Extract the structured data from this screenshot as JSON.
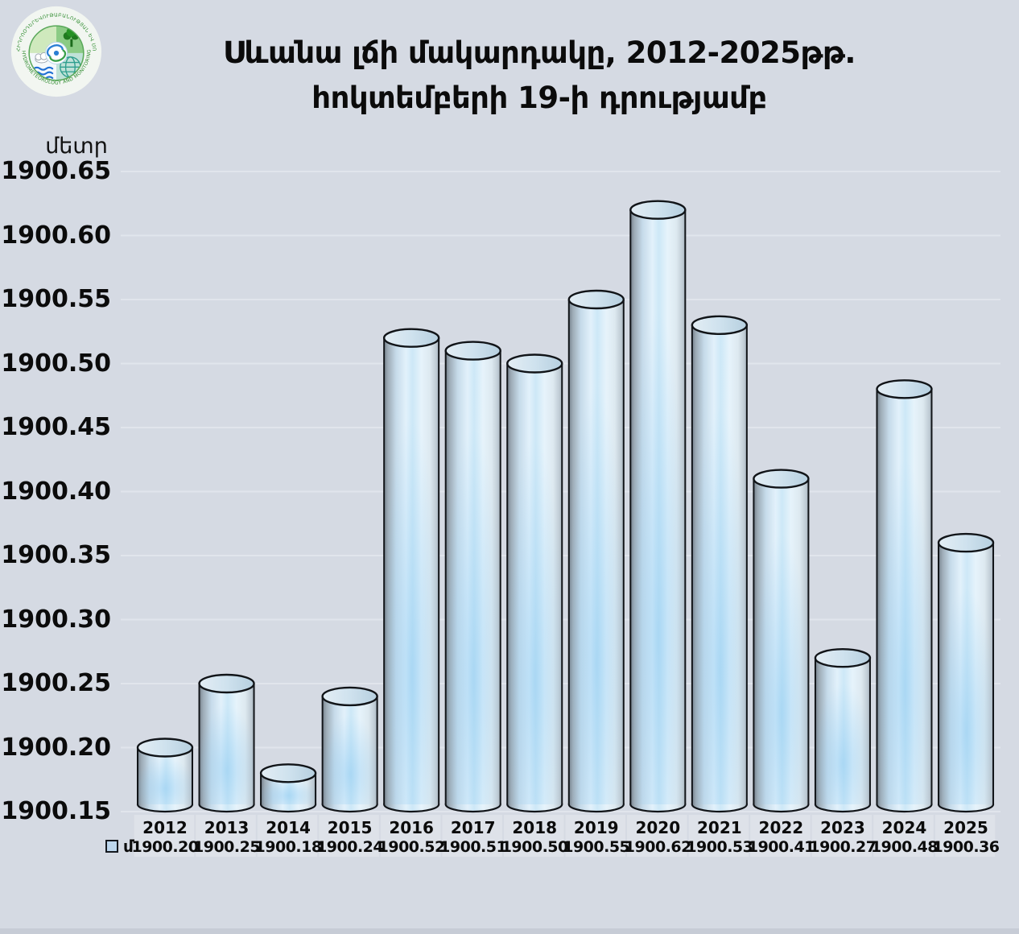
{
  "header": {
    "title_line1": "Սևանա լճի մակարդակը, 2012-2025թթ.",
    "title_line2": "հոկտեմբերի 19-ի դրությամբ"
  },
  "logo": {
    "top_arc_text": "ՀԻԴՐՈՕԴԵՐԵՎՈՒԹԱԲԱՆՈՒԹՅԱՆ ԵՎ ՄՈՆԻԹՈՐԻՆԳԻ ԿԵՆՏՐՈՆ",
    "bottom_arc_text": "HYDROMETEOROLOGY AND MONITORING CENTER"
  },
  "legend": {
    "series_label": "մ"
  },
  "chart_data": {
    "type": "bar",
    "bar_style": "cylinder-3d",
    "title": "Սևանա լճի մակարդակը, 2012-2025թթ. հոկտեմբերի 19-ի դրությամբ",
    "ylabel": "մետր",
    "xlabel": "",
    "categories": [
      "2012",
      "2013",
      "2014",
      "2015",
      "2016",
      "2017",
      "2018",
      "2019",
      "2020",
      "2021",
      "2022",
      "2023",
      "2024",
      "2025"
    ],
    "values": [
      1900.2,
      1900.25,
      1900.18,
      1900.24,
      1900.52,
      1900.51,
      1900.5,
      1900.55,
      1900.62,
      1900.53,
      1900.41,
      1900.27,
      1900.48,
      1900.36
    ],
    "value_labels": [
      "1900.20",
      "1900.25",
      "1900.18",
      "1900.24",
      "1900.52",
      "1900.51",
      "1900.50",
      "1900.55",
      "1900.62",
      "1900.53",
      "1900.41",
      "1900.27",
      "1900.48",
      "1900.36"
    ],
    "series": [
      {
        "name": "մ",
        "values": [
          1900.2,
          1900.25,
          1900.18,
          1900.24,
          1900.52,
          1900.51,
          1900.5,
          1900.55,
          1900.62,
          1900.53,
          1900.41,
          1900.27,
          1900.48,
          1900.36
        ]
      }
    ],
    "ylim": [
      1900.15,
      1900.65
    ],
    "ytick_step": 0.05,
    "ytick_labels": [
      "1900.15",
      "1900.20",
      "1900.25",
      "1900.30",
      "1900.35",
      "1900.40",
      "1900.45",
      "1900.50",
      "1900.55",
      "1900.60",
      "1900.65"
    ],
    "grid": true,
    "legend_position": "bottom-left",
    "colors": {
      "background": "#d5dae3",
      "gridline": "#e1e5ec",
      "bar_dark_edge": "#7e8994",
      "bar_light": "#e6f3fb",
      "bar_mid_blue": "#cde8f7",
      "bar_tint": "#7ec3f0",
      "outline": "#111418",
      "legend_fill": "#bdd7ee",
      "text": "#0b0b0b"
    }
  }
}
